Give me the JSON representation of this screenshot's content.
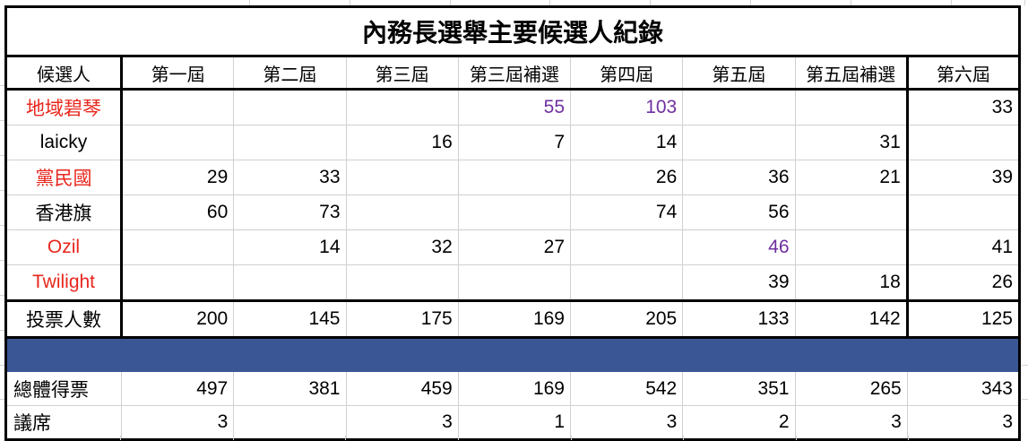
{
  "table": {
    "title": "內務長選舉主要候選人紀錄",
    "headers": [
      "候選人",
      "第一屆",
      "第二屆",
      "第三屆",
      "第三屆補選",
      "第四屆",
      "第五屆",
      "第五屆補選",
      "第六屆"
    ],
    "candidate_rows": [
      {
        "name": "地域碧琴",
        "name_color": "#e8261c",
        "values": [
          "",
          "",
          "",
          "55",
          "103",
          "",
          "",
          "33"
        ],
        "value_colors": [
          "",
          "",
          "",
          "#7030a0",
          "#7030a0",
          "",
          "",
          ""
        ]
      },
      {
        "name": "laicky",
        "name_color": "#000000",
        "values": [
          "",
          "",
          "16",
          "7",
          "14",
          "",
          "31",
          ""
        ],
        "value_colors": [
          "",
          "",
          "",
          "",
          "",
          "",
          "",
          ""
        ]
      },
      {
        "name": "黨民國",
        "name_color": "#e8261c",
        "values": [
          "29",
          "33",
          "",
          "",
          "26",
          "36",
          "21",
          "39"
        ],
        "value_colors": [
          "",
          "",
          "",
          "",
          "",
          "",
          "",
          ""
        ]
      },
      {
        "name": "香港旗",
        "name_color": "#000000",
        "values": [
          "60",
          "73",
          "",
          "",
          "74",
          "56",
          "",
          ""
        ],
        "value_colors": [
          "",
          "",
          "",
          "",
          "",
          "",
          "",
          ""
        ]
      },
      {
        "name": "Ozil",
        "name_color": "#e8261c",
        "values": [
          "",
          "14",
          "32",
          "27",
          "",
          "46",
          "",
          "41"
        ],
        "value_colors": [
          "",
          "",
          "",
          "",
          "",
          "#7030a0",
          "",
          ""
        ]
      },
      {
        "name": "Twilight",
        "name_color": "#e8261c",
        "values": [
          "",
          "",
          "",
          "",
          "",
          "39",
          "18",
          "26"
        ],
        "value_colors": [
          "",
          "",
          "",
          "",
          "",
          "",
          "",
          ""
        ]
      }
    ],
    "voters_row": {
      "name": "投票人數",
      "values": [
        "200",
        "145",
        "175",
        "169",
        "205",
        "133",
        "142",
        "125"
      ]
    },
    "total_row": {
      "name": "總體得票",
      "values": [
        "497",
        "381",
        "459",
        "169",
        "542",
        "351",
        "265",
        "343"
      ]
    },
    "seats_row": {
      "name": "議席",
      "values": [
        "3",
        "",
        "3",
        "1",
        "3",
        "2",
        "3",
        "3"
      ]
    }
  },
  "colors": {
    "candidate_red": "#e8261c",
    "highlight_purple": "#7030a0",
    "separator_blue": "#3a5694",
    "gridline_gray": "#d4d4d4",
    "border_black": "#000000"
  }
}
